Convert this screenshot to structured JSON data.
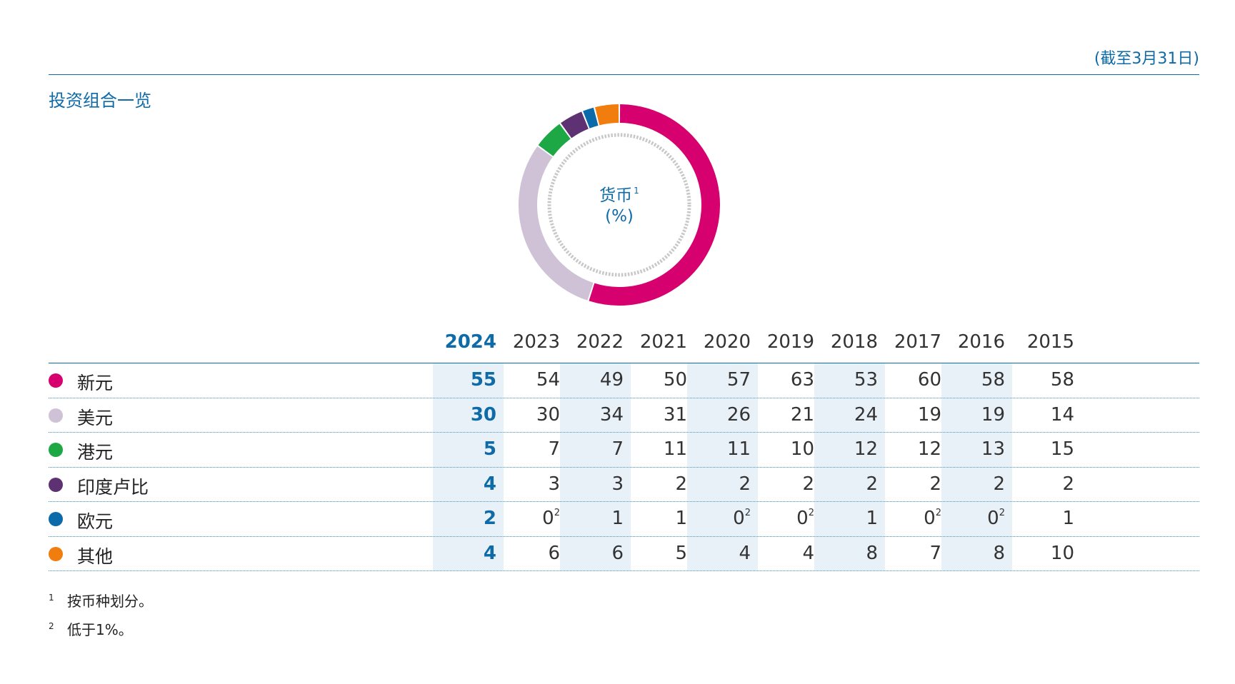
{
  "header": {
    "as_of": "(截至3月31日)",
    "title": "投资组合一览"
  },
  "donut": {
    "center_label": "货币",
    "center_footnote_ref": "1",
    "center_unit": "(%)"
  },
  "chart_data": {
    "type": "pie",
    "title": "货币",
    "unit": "%",
    "slices": [
      {
        "label": "新元",
        "value": 55,
        "color": "#d6006e"
      },
      {
        "label": "美元",
        "value": 30,
        "color": "#cfc2d7"
      },
      {
        "label": "港元",
        "value": 5,
        "color": "#1ea745"
      },
      {
        "label": "印度卢比",
        "value": 4,
        "color": "#5e3173"
      },
      {
        "label": "欧元",
        "value": 2,
        "color": "#0b6aa9"
      },
      {
        "label": "其他",
        "value": 4,
        "color": "#f07d0e"
      }
    ]
  },
  "table": {
    "years": [
      "2024",
      "2023",
      "2022",
      "2021",
      "2020",
      "2019",
      "2018",
      "2017",
      "2016",
      "2015"
    ],
    "rows": [
      {
        "label": "新元",
        "color": "#d6006e",
        "values": [
          "55",
          "54",
          "49",
          "50",
          "57",
          "63",
          "53",
          "60",
          "58",
          "58"
        ],
        "notes": [
          "",
          "",
          "",
          "",
          "",
          "",
          "",
          "",
          "",
          ""
        ]
      },
      {
        "label": "美元",
        "color": "#cfc2d7",
        "values": [
          "30",
          "30",
          "34",
          "31",
          "26",
          "21",
          "24",
          "19",
          "19",
          "14"
        ],
        "notes": [
          "",
          "",
          "",
          "",
          "",
          "",
          "",
          "",
          "",
          ""
        ]
      },
      {
        "label": "港元",
        "color": "#1ea745",
        "values": [
          "5",
          "7",
          "7",
          "11",
          "11",
          "10",
          "12",
          "12",
          "13",
          "15"
        ],
        "notes": [
          "",
          "",
          "",
          "",
          "",
          "",
          "",
          "",
          "",
          ""
        ]
      },
      {
        "label": "印度卢比",
        "color": "#5e3173",
        "values": [
          "4",
          "3",
          "3",
          "2",
          "2",
          "2",
          "2",
          "2",
          "2",
          "2"
        ],
        "notes": [
          "",
          "",
          "",
          "",
          "",
          "",
          "",
          "",
          "",
          ""
        ]
      },
      {
        "label": "欧元",
        "color": "#0b6aa9",
        "values": [
          "2",
          "0",
          "1",
          "1",
          "0",
          "0",
          "1",
          "0",
          "0",
          "1"
        ],
        "notes": [
          "",
          "2",
          "",
          "",
          "2",
          "2",
          "",
          "2",
          "2",
          ""
        ]
      },
      {
        "label": "其他",
        "color": "#f07d0e",
        "values": [
          "4",
          "6",
          "6",
          "5",
          "4",
          "4",
          "8",
          "7",
          "8",
          "10"
        ],
        "notes": [
          "",
          "",
          "",
          "",
          "",
          "",
          "",
          "",
          "",
          ""
        ]
      }
    ]
  },
  "footnotes": [
    {
      "mark": "1",
      "text": "按币种划分。"
    },
    {
      "mark": "2",
      "text": "低于1%。"
    }
  ]
}
